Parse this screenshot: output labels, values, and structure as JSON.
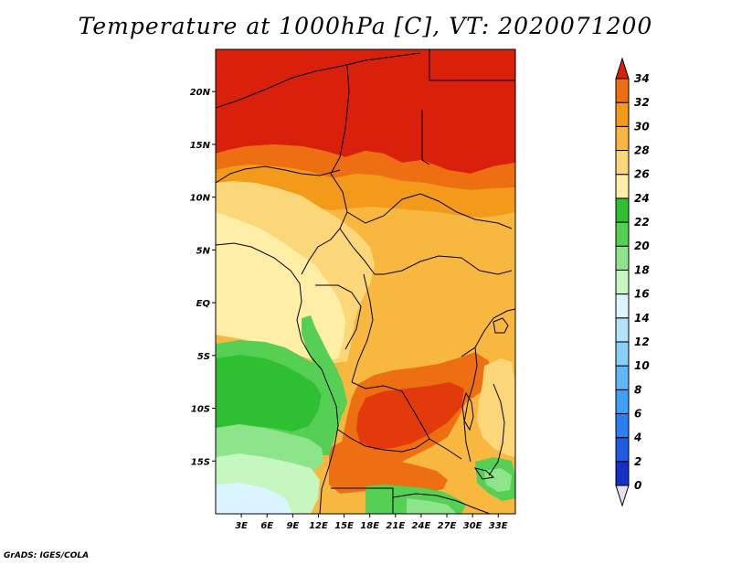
{
  "title": "Temperature at 1000hPa [C], VT: 2020071200",
  "footer": "GrADS: IGES/COLA",
  "map": {
    "lon_range": [
      0,
      35
    ],
    "lat_range": [
      -20,
      24
    ],
    "lon_ticks": [
      "3E",
      "6E",
      "9E",
      "12E",
      "15E",
      "18E",
      "21E",
      "24E",
      "27E",
      "30E",
      "33E"
    ],
    "lat_ticks": [
      "20N",
      "15N",
      "10N",
      "5N",
      "EQ",
      "5S",
      "10S",
      "15S"
    ]
  },
  "colorbar": {
    "levels": [
      "0",
      "2",
      "4",
      "6",
      "8",
      "10",
      "12",
      "14",
      "16",
      "18",
      "20",
      "22",
      "24",
      "26",
      "28",
      "30",
      "32",
      "34"
    ],
    "colors": [
      "#0b0b7a",
      "#1430c8",
      "#1f5ae0",
      "#2d7ef0",
      "#3fa0f5",
      "#60b8f8",
      "#88cff8",
      "#b4e2fb",
      "#daf5ff",
      "#c6f7c0",
      "#8ee48a",
      "#55d055",
      "#2ec030",
      "#ffeea6",
      "#fbd77a",
      "#f8b840",
      "#f39a1a",
      "#ee6f12",
      "#e23a0c"
    ],
    "under_color": "#e6e0f3",
    "over_color": "#d8200a"
  }
}
